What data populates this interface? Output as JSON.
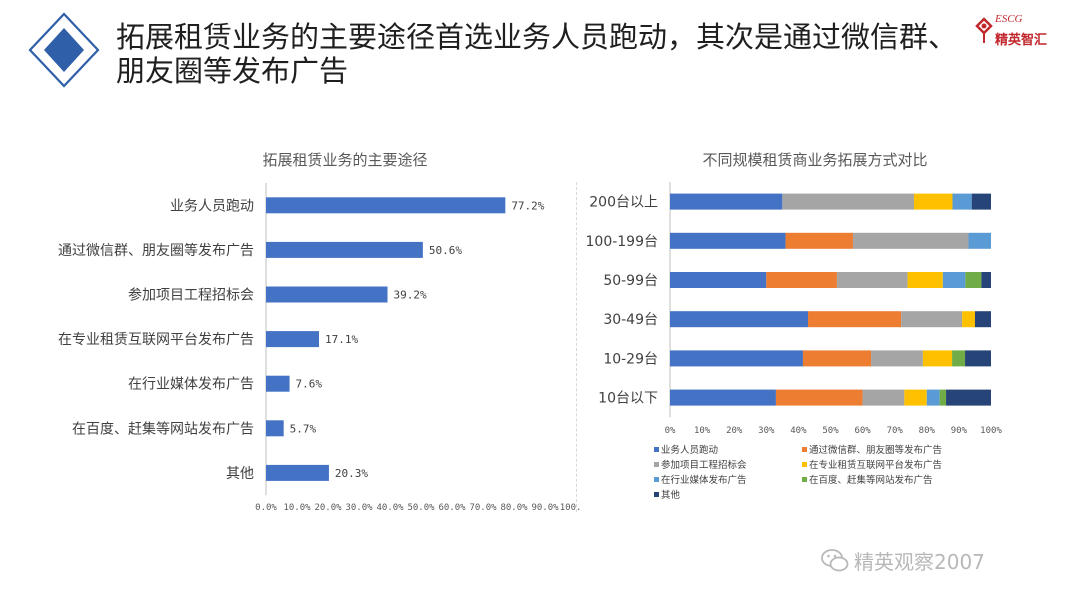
{
  "title": "拓展租赁业务的主要途径首选业务人员跑动，其次是通过微信群、朋友圈等发布广告",
  "logo": {
    "en": "ESCG",
    "cn": "精英智汇",
    "color": "#c1272d"
  },
  "watermark": "精英观察2007",
  "colors": {
    "accent": "#2e5fa8",
    "bar": "#4472c4"
  },
  "chart_data": [
    {
      "type": "bar",
      "orientation": "horizontal",
      "title": "拓展租赁业务的主要途径",
      "categories": [
        "业务人员跑动",
        "通过微信群、朋友圈等发布广告",
        "参加项目工程招标会",
        "在专业租赁互联网平台发布广告",
        "在行业媒体发布广告",
        "在百度、赶集等网站发布广告",
        "其他"
      ],
      "values": [
        77.2,
        50.6,
        39.2,
        17.1,
        7.6,
        5.7,
        20.3
      ],
      "value_labels": [
        "77.2%",
        "50.6%",
        "39.2%",
        "17.1%",
        "7.6%",
        "5.7%",
        "20.3%"
      ],
      "xlim": [
        0,
        100
      ],
      "ticks": [
        "0.0%",
        "10.0%",
        "20.0%",
        "30.0%",
        "40.0%",
        "50.0%",
        "60.0%",
        "70.0%",
        "80.0%",
        "90.0%",
        "100.0%"
      ],
      "grid": false
    },
    {
      "type": "bar",
      "orientation": "horizontal",
      "stacked": "percent",
      "title": "不同规模租赁商业务拓展方式对比",
      "categories": [
        "200台以上",
        "100-199台",
        "50-99台",
        "30-49台",
        "10-29台",
        "10台以下"
      ],
      "xlim": [
        0,
        100
      ],
      "ticks": [
        "0%",
        "10%",
        "20%",
        "30%",
        "40%",
        "50%",
        "60%",
        "70%",
        "80%",
        "90%",
        "100%"
      ],
      "legend_position": "bottom",
      "series": [
        {
          "name": "业务人员跑动",
          "color": "#4472c4",
          "values": [
            35,
            36,
            30,
            43,
            41,
            33
          ]
        },
        {
          "name": "通过微信群、朋友圈等发布广告",
          "color": "#ed7d31",
          "values": [
            0,
            21,
            22,
            29,
            21,
            27
          ]
        },
        {
          "name": "参加项目工程招标会",
          "color": "#a5a5a5",
          "values": [
            41,
            36,
            22,
            19,
            16,
            13
          ]
        },
        {
          "name": "在专业租赁互联网平台发布广告",
          "color": "#ffc000",
          "values": [
            12,
            0,
            11,
            4,
            9,
            7
          ]
        },
        {
          "name": "在行业媒体发布广告",
          "color": "#5b9bd5",
          "values": [
            6,
            7,
            7,
            0,
            0,
            4
          ]
        },
        {
          "name": "在百度、赶集等网站发布广告",
          "color": "#70ad47",
          "values": [
            0,
            0,
            5,
            0,
            4,
            2
          ]
        },
        {
          "name": "其他",
          "color": "#264478",
          "values": [
            6,
            0,
            3,
            5,
            8,
            14
          ]
        }
      ]
    }
  ]
}
